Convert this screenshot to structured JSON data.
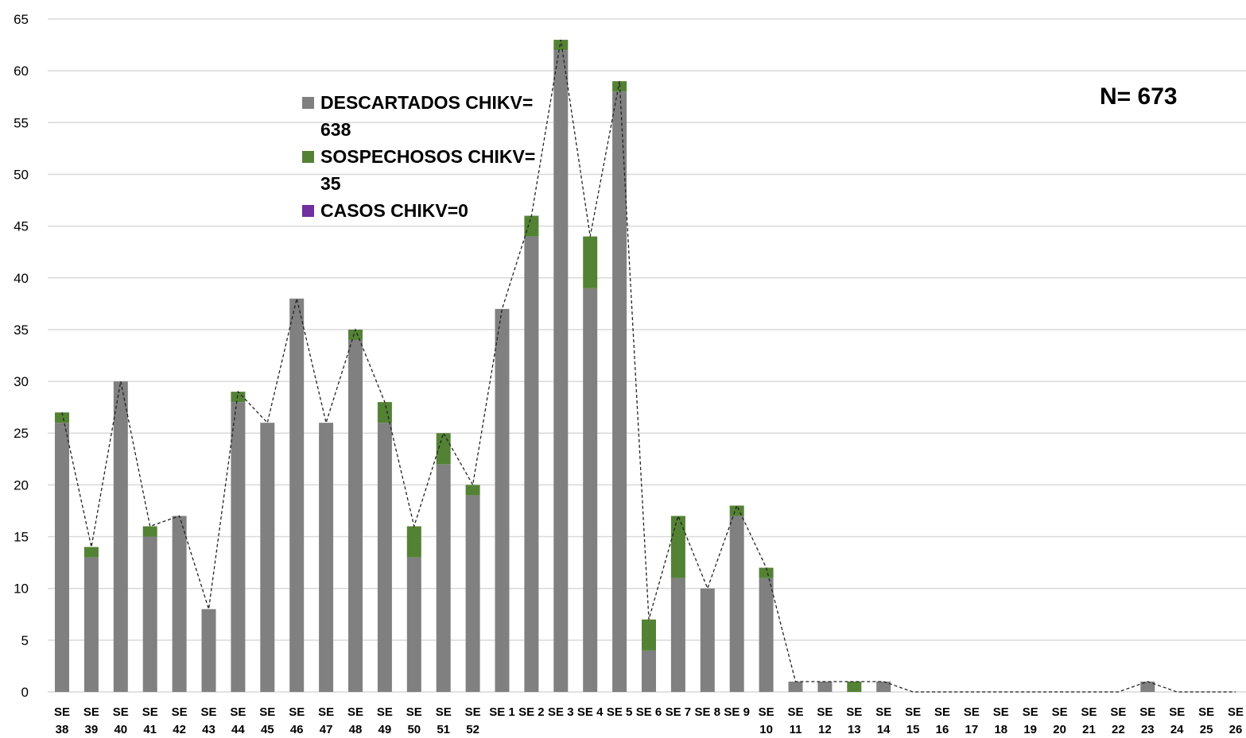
{
  "chart_data": {
    "type": "bar",
    "stacked": true,
    "categories": [
      "SE 38",
      "SE 39",
      "SE 40",
      "SE 41",
      "SE 42",
      "SE 43",
      "SE 44",
      "SE 45",
      "SE 46",
      "SE 47",
      "SE 48",
      "SE 49",
      "SE 50",
      "SE 51",
      "SE 52",
      "SE 1",
      "SE 2",
      "SE 3",
      "SE 4",
      "SE 5",
      "SE 6",
      "SE 7",
      "SE 8",
      "SE 9",
      "SE 10",
      "SE 11",
      "SE 12",
      "SE 13",
      "SE 14",
      "SE 15",
      "SE 16",
      "SE 17",
      "SE 18",
      "SE 19",
      "SE 20",
      "SE 21",
      "SE 22",
      "SE 23",
      "SE 24",
      "SE 25",
      "SE 26"
    ],
    "series": [
      {
        "name": "DESCARTADOS CHIKV= 638",
        "color": "#808080",
        "values": [
          26,
          13,
          30,
          15,
          17,
          8,
          28,
          26,
          38,
          26,
          34,
          26,
          13,
          22,
          19,
          37,
          44,
          62,
          39,
          58,
          4,
          11,
          10,
          17,
          11,
          1,
          1,
          0,
          1,
          0,
          0,
          0,
          0,
          0,
          0,
          0,
          0,
          1,
          0,
          0,
          0
        ]
      },
      {
        "name": "SOSPECHOSOS CHIKV= 35",
        "color": "#548235",
        "values": [
          1,
          1,
          0,
          1,
          0,
          0,
          1,
          0,
          0,
          0,
          1,
          2,
          3,
          3,
          1,
          0,
          2,
          1,
          5,
          1,
          3,
          6,
          0,
          1,
          1,
          0,
          0,
          1,
          0,
          0,
          0,
          0,
          0,
          0,
          0,
          0,
          0,
          0,
          0,
          0,
          0
        ]
      },
      {
        "name": "CASOS CHIKV=0",
        "color": "#7030a0",
        "values": [
          0,
          0,
          0,
          0,
          0,
          0,
          0,
          0,
          0,
          0,
          0,
          0,
          0,
          0,
          0,
          0,
          0,
          0,
          0,
          0,
          0,
          0,
          0,
          0,
          0,
          0,
          0,
          0,
          0,
          0,
          0,
          0,
          0,
          0,
          0,
          0,
          0,
          0,
          0,
          0,
          0
        ]
      }
    ],
    "totals": [
      27,
      14,
      30,
      16,
      17,
      8,
      29,
      26,
      38,
      26,
      35,
      28,
      16,
      25,
      20,
      37,
      46,
      63,
      44,
      59,
      7,
      17,
      10,
      18,
      12,
      1,
      1,
      1,
      1,
      0,
      0,
      0,
      0,
      0,
      0,
      0,
      0,
      1,
      0,
      0,
      0
    ],
    "trend_line": "dashed",
    "ylim": [
      0,
      65
    ],
    "yticks": [
      0,
      5,
      10,
      15,
      20,
      25,
      30,
      35,
      40,
      45,
      50,
      55,
      60,
      65
    ],
    "grid": true,
    "legend_position": "top-center",
    "annotation": "N= 673"
  }
}
